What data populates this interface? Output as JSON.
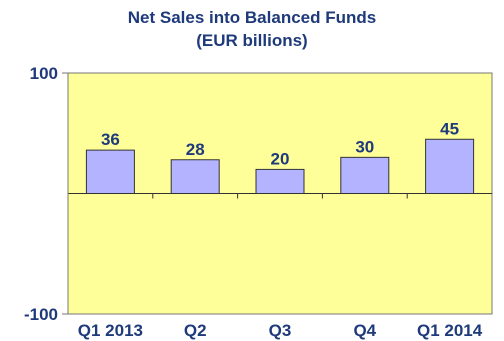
{
  "chart_data": {
    "type": "bar",
    "title": [
      "Net Sales into Balanced Funds",
      "(EUR billions)"
    ],
    "categories": [
      "Q1 2013",
      "Q2",
      "Q3",
      "Q4",
      "Q1 2014"
    ],
    "values": [
      36,
      28,
      20,
      30,
      45
    ],
    "value_labels": [
      "36",
      "28",
      "20",
      "30",
      "45"
    ],
    "y_ticks": [
      "100",
      "-100"
    ],
    "ylim": [
      -100,
      100
    ],
    "grid": false,
    "legend": "none",
    "xlabel": "",
    "ylabel": ""
  },
  "colors": {
    "plot_background": "#ffff99",
    "bar_fill": "#b3b3ff",
    "bar_stroke": "#333333",
    "text": "#1f3a7a"
  }
}
